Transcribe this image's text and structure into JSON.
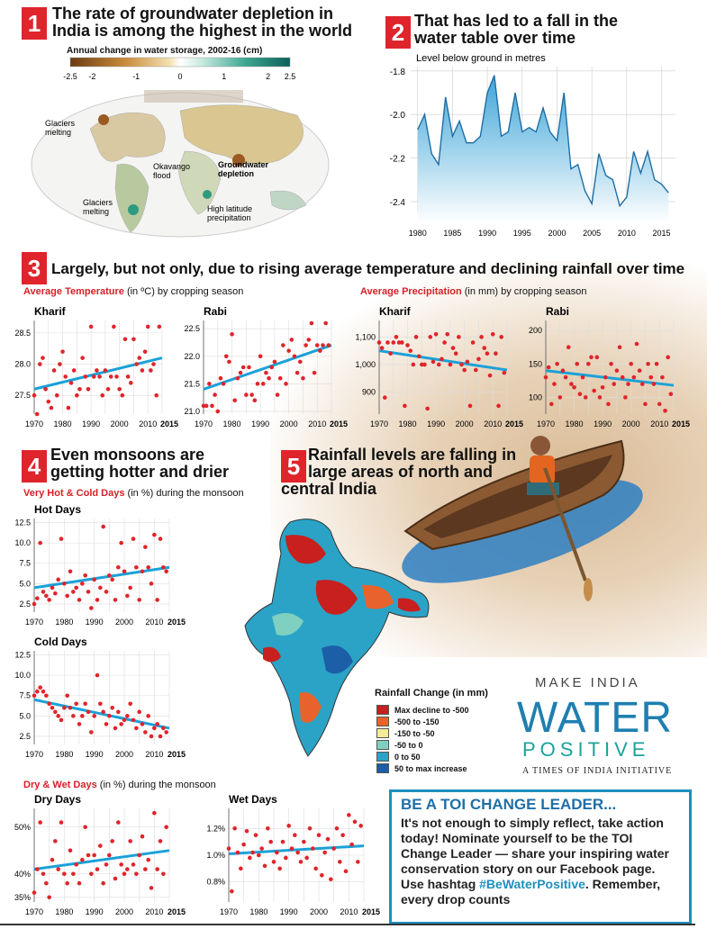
{
  "section1": {
    "num": "1",
    "title_line1": "The rate of groundwater depletion in",
    "title_line2": "India is among the highest in the world",
    "map_legend_title": "Annual change in water storage, 2002-16 (cm)",
    "legend_ticks": [
      "-2.5",
      "-2",
      "-1",
      "0",
      "1",
      "2",
      "2.5"
    ],
    "annotations": {
      "glaciers1": "Glaciers\nmelting",
      "okavango": "Okavango\nflood",
      "groundwater": "Groundwater\ndepletion",
      "glaciers2": "Glaciers\nmelting",
      "highlat": "High latitude\nprecipitation"
    }
  },
  "section2": {
    "num": "2",
    "title_line1": "That has led to a fall in the",
    "title_line2": "water table over time"
  },
  "section3": {
    "num": "3",
    "title": "Largely, but not only, due to rising average temperature and declining rainfall over time",
    "temp_label_red": "Average Temperature",
    "temp_label_rest": "(in ºC) by cropping season",
    "precip_label_red": "Average Precipitation",
    "precip_label_rest": "(in mm) by cropping season"
  },
  "section4": {
    "num": "4",
    "title_line1": "Even monsoons are",
    "title_line2": "getting hotter and drier",
    "hotcold_red": "Very Hot & Cold Days",
    "hotcold_rest": "(in %) during the monsoon",
    "drywet_red": "Dry & Wet Days",
    "drywet_rest": "(in %) during the monsoon"
  },
  "section5": {
    "num": "5",
    "title_line1": "Rainfall levels are falling in",
    "title_line2": "large areas of north and",
    "title_line3": "central India",
    "legend_title": "Rainfall Change",
    "legend_unit": "(in mm)",
    "legend": [
      {
        "label": "Max decline to -500",
        "color": "#c8201e"
      },
      {
        "label": "-500 to -150",
        "color": "#e8632b"
      },
      {
        "label": "-150 to -50",
        "color": "#f5ea9a"
      },
      {
        "label": "-50 to 0",
        "color": "#7fd0c0"
      },
      {
        "label": "0 to 50",
        "color": "#2aa3c6"
      },
      {
        "label": "50 to max increase",
        "color": "#1c5ea8"
      }
    ]
  },
  "brand": {
    "make_india": "MAKE INDIA",
    "water": "WATER",
    "positive": "POSITIVE",
    "initiative": "A TIMES OF INDIA INITIATIVE"
  },
  "toi": {
    "heading": "BE A TOI CHANGE LEADER...",
    "body1": "It's not enough to simply reflect, take action today! Nominate yourself to be the ",
    "body_bold": "TOI Change Leader",
    "body2": " — share your inspiring water conservation story on our Facebook page. Use hashtag ",
    "hashtag": "#BeWaterPositive",
    "body3": ". Remember, every drop counts"
  },
  "chart_data": [
    {
      "id": "water_table",
      "type": "area",
      "title": "",
      "ylabel": "Level below ground in metres",
      "ylim": [
        -2.45,
        -1.78
      ],
      "yticks": [
        -1.8,
        -2.0,
        -2.2,
        -2.4
      ],
      "ytick_labels": [
        "-1.8",
        "-2.0",
        "-2.2",
        "-2.4"
      ],
      "xticks": [
        1980,
        1985,
        1990,
        1995,
        2000,
        2005,
        2010,
        2015
      ],
      "x": [
        1980,
        1981,
        1982,
        1983,
        1984,
        1985,
        1986,
        1987,
        1988,
        1989,
        1990,
        1991,
        1992,
        1993,
        1994,
        1995,
        1996,
        1997,
        1998,
        1999,
        2000,
        2001,
        2002,
        2003,
        2004,
        2005,
        2006,
        2007,
        2008,
        2009,
        2010,
        2011,
        2012,
        2013,
        2014,
        2015,
        2016
      ],
      "y": [
        -2.07,
        -2.0,
        -2.18,
        -2.23,
        -1.92,
        -2.1,
        -2.03,
        -2.13,
        -2.13,
        -2.1,
        -1.9,
        -1.82,
        -2.1,
        -2.08,
        -1.9,
        -2.08,
        -2.06,
        -2.08,
        -1.97,
        -2.08,
        -2.12,
        -1.9,
        -2.25,
        -2.23,
        -2.35,
        -2.41,
        -2.18,
        -2.28,
        -2.3,
        -2.42,
        -2.38,
        -2.17,
        -2.27,
        -2.17,
        -2.3,
        -2.32,
        -2.36
      ]
    },
    {
      "id": "kharif_temp",
      "type": "scatter",
      "title": "Kharif",
      "ylim": [
        27.2,
        28.7
      ],
      "yticks": [
        27.5,
        28.0,
        28.5
      ],
      "ytick_labels": [
        "27.5",
        "28.0",
        "28.5"
      ],
      "xlim": [
        1970,
        2015
      ],
      "xticks": [
        1970,
        1980,
        1990,
        2000,
        2010,
        2015
      ],
      "x": [
        1970,
        1971,
        1972,
        1973,
        1974,
        1975,
        1976,
        1977,
        1978,
        1979,
        1980,
        1981,
        1982,
        1983,
        1984,
        1985,
        1986,
        1987,
        1988,
        1989,
        1990,
        1991,
        1992,
        1993,
        1994,
        1995,
        1996,
        1997,
        1998,
        1999,
        2000,
        2001,
        2002,
        2003,
        2004,
        2005,
        2006,
        2007,
        2008,
        2009,
        2010,
        2011,
        2012,
        2013,
        2014
      ],
      "y": [
        27.5,
        27.2,
        28.0,
        28.1,
        27.6,
        27.4,
        27.3,
        27.9,
        27.5,
        28.0,
        28.2,
        27.8,
        27.3,
        27.7,
        27.9,
        27.5,
        27.6,
        28.1,
        27.8,
        27.6,
        28.6,
        27.8,
        27.9,
        27.8,
        27.5,
        27.9,
        27.6,
        27.8,
        28.6,
        27.8,
        27.6,
        27.5,
        28.4,
        27.8,
        27.7,
        28.4,
        28.0,
        28.1,
        27.9,
        28.2,
        28.6,
        27.9,
        28.0,
        27.5,
        28.6
      ],
      "trend": [
        27.6,
        28.1
      ]
    },
    {
      "id": "rabi_temp",
      "type": "scatter",
      "title": "Rabi",
      "ylim": [
        20.95,
        22.65
      ],
      "yticks": [
        21.0,
        21.5,
        22.0,
        22.5
      ],
      "ytick_labels": [
        "21.0",
        "21.5",
        "22.0",
        "22.5"
      ],
      "xlim": [
        1970,
        2015
      ],
      "xticks": [
        1970,
        1980,
        1990,
        2000,
        2010,
        2015
      ],
      "x": [
        1970,
        1971,
        1972,
        1973,
        1974,
        1975,
        1976,
        1977,
        1978,
        1979,
        1980,
        1981,
        1982,
        1983,
        1984,
        1985,
        1986,
        1987,
        1988,
        1989,
        1990,
        1991,
        1992,
        1993,
        1994,
        1995,
        1996,
        1997,
        1998,
        1999,
        2000,
        2001,
        2002,
        2003,
        2004,
        2005,
        2006,
        2007,
        2008,
        2009,
        2010,
        2011,
        2012,
        2013,
        2014
      ],
      "y": [
        21.1,
        21.1,
        21.5,
        21.1,
        21.3,
        21.0,
        21.6,
        21.5,
        22.0,
        21.9,
        22.4,
        21.2,
        21.6,
        21.7,
        21.8,
        21.3,
        21.8,
        21.3,
        21.2,
        21.5,
        22.0,
        21.5,
        21.7,
        21.6,
        21.8,
        21.9,
        21.3,
        21.6,
        22.2,
        21.5,
        22.1,
        22.3,
        22.0,
        21.7,
        21.9,
        21.6,
        22.2,
        22.3,
        22.6,
        21.7,
        22.2,
        22.1,
        22.2,
        22.6,
        22.2
      ],
      "trend": [
        21.4,
        22.2
      ]
    },
    {
      "id": "kharif_precip",
      "type": "scatter",
      "title": "Kharif",
      "ylim": [
        820,
        1160
      ],
      "yticks": [
        900,
        1000,
        1100
      ],
      "ytick_labels": [
        "900",
        "1,000",
        "1,100"
      ],
      "xlim": [
        1970,
        2015
      ],
      "xticks": [
        1970,
        1980,
        1990,
        2000,
        2010,
        2015
      ],
      "x": [
        1970,
        1971,
        1972,
        1973,
        1974,
        1975,
        1976,
        1977,
        1978,
        1979,
        1980,
        1981,
        1982,
        1983,
        1984,
        1985,
        1986,
        1987,
        1988,
        1989,
        1990,
        1991,
        1992,
        1993,
        1994,
        1995,
        1996,
        1997,
        1998,
        1999,
        2000,
        2001,
        2002,
        2003,
        2004,
        2005,
        2006,
        2007,
        2008,
        2009,
        2010,
        2011,
        2012,
        2013,
        2014
      ],
      "y": [
        1080,
        1060,
        880,
        1080,
        1040,
        1080,
        1100,
        1080,
        1080,
        850,
        1070,
        1050,
        1000,
        1100,
        1030,
        1000,
        1000,
        840,
        1100,
        1010,
        1110,
        1000,
        1020,
        1080,
        1110,
        1000,
        1060,
        1040,
        1100,
        1000,
        980,
        1010,
        850,
        1080,
        980,
        1020,
        1100,
        1060,
        1040,
        960,
        1110,
        1040,
        850,
        1100,
        970
      ],
      "trend": [
        1050,
        980
      ]
    },
    {
      "id": "rabi_precip",
      "type": "scatter",
      "title": "Rabi",
      "ylim": [
        75,
        215
      ],
      "yticks": [
        100,
        150,
        200
      ],
      "ytick_labels": [
        "100",
        "150",
        "200"
      ],
      "xlim": [
        1970,
        2015
      ],
      "xticks": [
        1970,
        1980,
        1990,
        2000,
        2010,
        2015
      ],
      "x": [
        1970,
        1971,
        1972,
        1973,
        1974,
        1975,
        1976,
        1977,
        1978,
        1979,
        1980,
        1981,
        1982,
        1983,
        1984,
        1985,
        1986,
        1987,
        1988,
        1989,
        1990,
        1991,
        1992,
        1993,
        1994,
        1995,
        1996,
        1997,
        1998,
        1999,
        2000,
        2001,
        2002,
        2003,
        2004,
        2005,
        2006,
        2007,
        2008,
        2009,
        2010,
        2011,
        2012,
        2013,
        2014
      ],
      "y": [
        130,
        145,
        90,
        120,
        150,
        100,
        140,
        130,
        175,
        120,
        115,
        150,
        105,
        130,
        100,
        150,
        160,
        110,
        160,
        100,
        115,
        130,
        90,
        150,
        120,
        140,
        175,
        130,
        100,
        120,
        150,
        130,
        180,
        140,
        120,
        90,
        150,
        130,
        120,
        150,
        90,
        130,
        80,
        160,
        105
      ],
      "trend": [
        140,
        118
      ]
    },
    {
      "id": "hot_days",
      "type": "scatter",
      "title": "Hot Days",
      "ylim": [
        1.5,
        13
      ],
      "yticks": [
        2.5,
        5.0,
        7.5,
        10.0,
        12.5
      ],
      "ytick_labels": [
        "2.5",
        "5.0",
        "7.5",
        "10.0",
        "12.5"
      ],
      "xlim": [
        1970,
        2015
      ],
      "xticks": [
        1970,
        1980,
        1990,
        2000,
        2010,
        2015
      ],
      "x": [
        1970,
        1971,
        1972,
        1973,
        1974,
        1975,
        1976,
        1977,
        1978,
        1979,
        1980,
        1981,
        1982,
        1983,
        1984,
        1985,
        1986,
        1987,
        1988,
        1989,
        1990,
        1991,
        1992,
        1993,
        1994,
        1995,
        1996,
        1997,
        1998,
        1999,
        2000,
        2001,
        2002,
        2003,
        2004,
        2005,
        2006,
        2007,
        2008,
        2009,
        2010,
        2011,
        2012,
        2013,
        2014
      ],
      "y": [
        2.5,
        3.2,
        10.0,
        4.0,
        3.5,
        3.0,
        4.5,
        3.8,
        5.5,
        10.5,
        5.0,
        3.5,
        6.5,
        4.0,
        4.5,
        3.0,
        5.0,
        6.0,
        4.0,
        2.0,
        5.5,
        3.0,
        4.5,
        12.0,
        4.0,
        6.0,
        5.5,
        3.0,
        7.0,
        10.0,
        6.5,
        3.5,
        4.5,
        10.5,
        7.0,
        3.0,
        6.5,
        9.5,
        7.0,
        5.0,
        11.0,
        3.0,
        10.5,
        7.0,
        6.5
      ],
      "trend": [
        4.5,
        7.0
      ]
    },
    {
      "id": "cold_days",
      "type": "scatter",
      "title": "Cold Days",
      "ylim": [
        1.5,
        13
      ],
      "yticks": [
        2.5,
        5.0,
        7.5,
        10.0,
        12.5
      ],
      "ytick_labels": [
        "2.5",
        "5.0",
        "7.5",
        "10.0",
        "12.5"
      ],
      "xlim": [
        1970,
        2015
      ],
      "xticks": [
        1970,
        1980,
        1990,
        2000,
        2010,
        2015
      ],
      "x": [
        1970,
        1971,
        1972,
        1973,
        1974,
        1975,
        1976,
        1977,
        1978,
        1979,
        1980,
        1981,
        1982,
        1983,
        1984,
        1985,
        1986,
        1987,
        1988,
        1989,
        1990,
        1991,
        1992,
        1993,
        1994,
        1995,
        1996,
        1997,
        1998,
        1999,
        2000,
        2001,
        2002,
        2003,
        2004,
        2005,
        2006,
        2007,
        2008,
        2009,
        2010,
        2011,
        2012,
        2013,
        2014
      ],
      "y": [
        7.5,
        8.0,
        8.5,
        8.0,
        7.5,
        6.5,
        6.0,
        5.5,
        5.0,
        4.5,
        6.0,
        7.5,
        6.0,
        5.0,
        6.5,
        4.0,
        5.0,
        6.5,
        5.5,
        3.0,
        5.0,
        10.0,
        6.5,
        5.5,
        4.0,
        5.0,
        6.0,
        3.5,
        5.5,
        4.0,
        4.5,
        5.0,
        6.5,
        4.5,
        3.5,
        5.5,
        4.0,
        3.0,
        5.0,
        2.5,
        3.5,
        4.0,
        2.5,
        3.5,
        3.0
      ],
      "trend": [
        7.0,
        3.5
      ]
    },
    {
      "id": "dry_days",
      "type": "scatter",
      "title": "Dry Days",
      "ylim": [
        34,
        54
      ],
      "yticks": [
        35,
        40,
        50
      ],
      "ytick_labels": [
        "35%",
        "40%",
        "50%"
      ],
      "xlim": [
        1970,
        2015
      ],
      "xticks": [
        1970,
        1980,
        1990,
        2000,
        2010,
        2015
      ],
      "x": [
        1970,
        1971,
        1972,
        1973,
        1974,
        1975,
        1976,
        1977,
        1978,
        1979,
        1980,
        1981,
        1982,
        1983,
        1984,
        1985,
        1986,
        1987,
        1988,
        1989,
        1990,
        1991,
        1992,
        1993,
        1994,
        1995,
        1996,
        1997,
        1998,
        1999,
        2000,
        2001,
        2002,
        2003,
        2004,
        2005,
        2006,
        2007,
        2008,
        2009,
        2010,
        2011,
        2012,
        2013,
        2014
      ],
      "y": [
        36,
        41,
        51,
        40,
        38,
        35,
        43,
        47,
        41,
        51,
        40,
        38,
        45,
        40,
        42,
        38,
        43,
        50,
        44,
        40,
        44,
        41,
        46,
        38,
        42,
        44,
        47,
        39,
        51,
        42,
        40,
        41,
        47,
        42,
        40,
        44,
        48,
        41,
        43,
        37,
        53,
        41,
        47,
        40,
        50
      ],
      "trend": [
        41,
        45
      ]
    },
    {
      "id": "wet_days",
      "type": "scatter",
      "title": "Wet Days",
      "ylim": [
        0.65,
        1.35
      ],
      "yticks": [
        0.8,
        1.0,
        1.2
      ],
      "ytick_labels": [
        "0.8%",
        "1.0%",
        "1.2%"
      ],
      "xlim": [
        1970,
        2015
      ],
      "xticks": [
        1970,
        1980,
        1990,
        2000,
        2010,
        2015
      ],
      "x": [
        1970,
        1971,
        1972,
        1973,
        1974,
        1975,
        1976,
        1977,
        1978,
        1979,
        1980,
        1981,
        1982,
        1983,
        1984,
        1985,
        1986,
        1987,
        1988,
        1989,
        1990,
        1991,
        1992,
        1993,
        1994,
        1995,
        1996,
        1997,
        1998,
        1999,
        2000,
        2001,
        2002,
        2003,
        2004,
        2005,
        2006,
        2007,
        2008,
        2009,
        2010,
        2011,
        2012,
        2013,
        2014
      ],
      "y": [
        1.05,
        0.73,
        1.2,
        1.02,
        0.9,
        1.08,
        1.18,
        0.98,
        1.02,
        1.15,
        1.0,
        1.05,
        0.92,
        1.2,
        1.1,
        0.95,
        1.02,
        0.9,
        1.1,
        0.98,
        1.22,
        1.05,
        1.15,
        1.02,
        0.95,
        1.1,
        0.98,
        1.2,
        1.05,
        0.9,
        1.15,
        0.85,
        1.02,
        1.12,
        0.82,
        1.05,
        1.2,
        0.95,
        1.15,
        0.88,
        1.3,
        1.08,
        1.25,
        0.95,
        1.22
      ],
      "trend": [
        1.01,
        1.07
      ]
    }
  ],
  "colors": {
    "red": "#e0242b",
    "blue": "#1ba1d8",
    "dot": "#e0242b",
    "area": "#7ec8e8"
  }
}
